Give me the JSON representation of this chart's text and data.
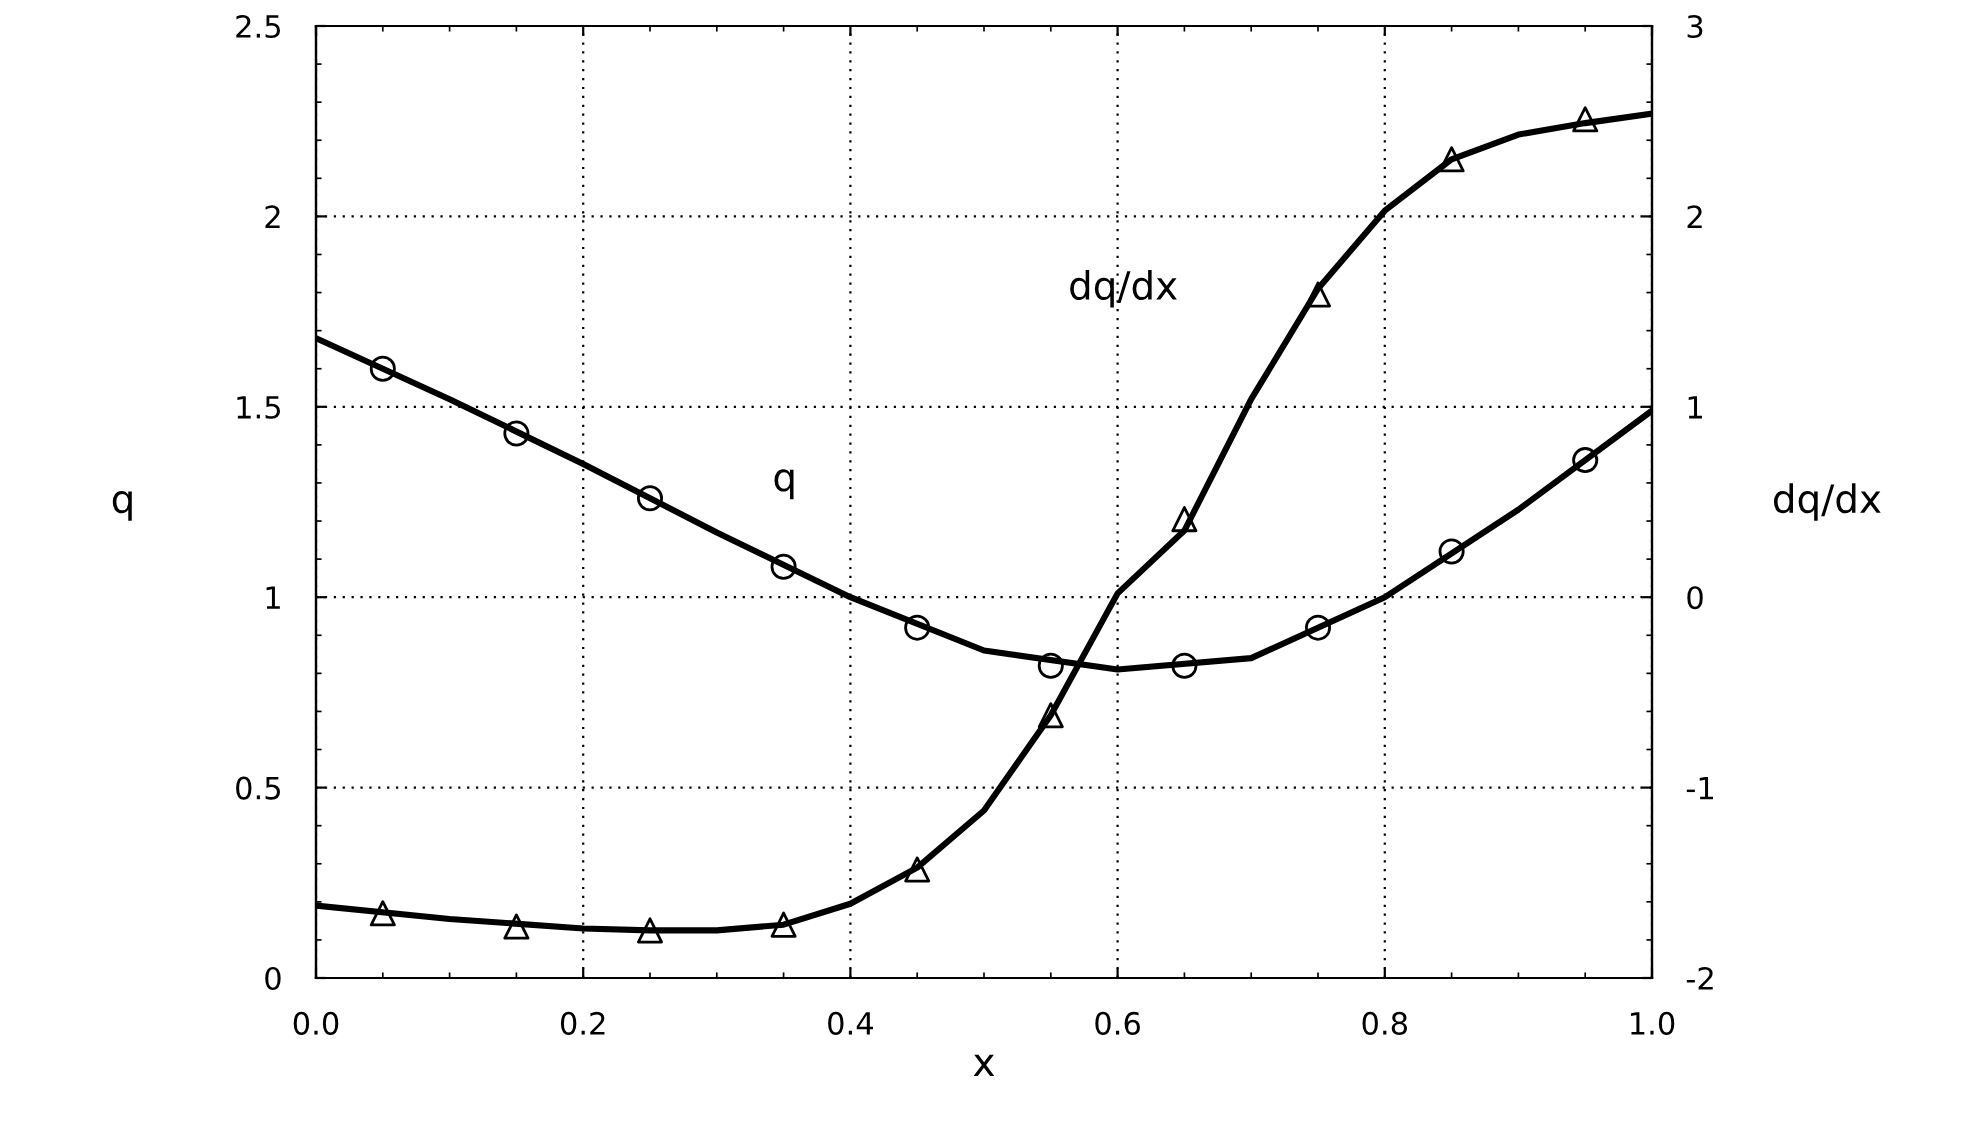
{
  "chart_data": {
    "type": "line",
    "xlabel": "x",
    "ylabel": "q",
    "y2label": "dq/dx",
    "xlim": [
      0,
      1
    ],
    "xticks": [
      {
        "value": 0,
        "label": "0.0"
      },
      0.2,
      0.4,
      0.6,
      0.8,
      {
        "value": 1,
        "label": "1.0"
      }
    ],
    "ylim": [
      0,
      2.5
    ],
    "yticks": [
      0,
      0.5,
      1,
      1.5,
      2,
      2.5
    ],
    "y2lim": [
      -2,
      3
    ],
    "y2ticks": [
      -2,
      -1,
      0,
      1,
      2,
      3
    ],
    "grid": true,
    "series": [
      {
        "name": "q",
        "color": "#000000",
        "marker": "none",
        "x": [
          0,
          0.1,
          0.2,
          0.3,
          0.4,
          0.5,
          0.6,
          0.7,
          0.8,
          0.9,
          1.0
        ],
        "values": [
          1.68,
          1.52,
          1.35,
          1.17,
          1.0,
          0.86,
          0.81,
          0.84,
          1.0,
          1.23,
          1.49
        ]
      },
      {
        "type": "scatter",
        "color": "#000000",
        "marker": "circle",
        "x": [
          0.05,
          0.15,
          0.25,
          0.35,
          0.45,
          0.55,
          0.65,
          0.75,
          0.85,
          0.95
        ],
        "values": [
          1.6,
          1.43,
          1.26,
          1.08,
          0.92,
          0.82,
          0.82,
          0.92,
          1.12,
          1.36
        ]
      },
      {
        "name": "dq/dx",
        "axis": "y2",
        "color": "#000000",
        "marker": "none",
        "x": [
          0,
          0.1,
          0.2,
          0.25,
          0.3,
          0.35,
          0.4,
          0.45,
          0.5,
          0.55,
          0.6,
          0.65,
          0.7,
          0.75,
          0.8,
          0.85,
          0.9,
          0.95,
          1.0
        ],
        "values": [
          -1.62,
          -1.69,
          -1.74,
          -1.75,
          -1.75,
          -1.72,
          -1.61,
          -1.42,
          -1.12,
          -0.62,
          0.02,
          0.35,
          1.04,
          1.62,
          2.03,
          2.3,
          2.43,
          2.49,
          2.54
        ]
      },
      {
        "type": "scatter",
        "axis": "y2",
        "color": "#000000",
        "marker": "triangle",
        "x": [
          0.05,
          0.15,
          0.25,
          0.35,
          0.45,
          0.55,
          0.65,
          0.75,
          0.85,
          0.95
        ],
        "values": [
          -1.66,
          -1.73,
          -1.75,
          -1.72,
          -1.43,
          -0.62,
          0.41,
          1.59,
          2.3,
          2.51
        ]
      }
    ]
  }
}
